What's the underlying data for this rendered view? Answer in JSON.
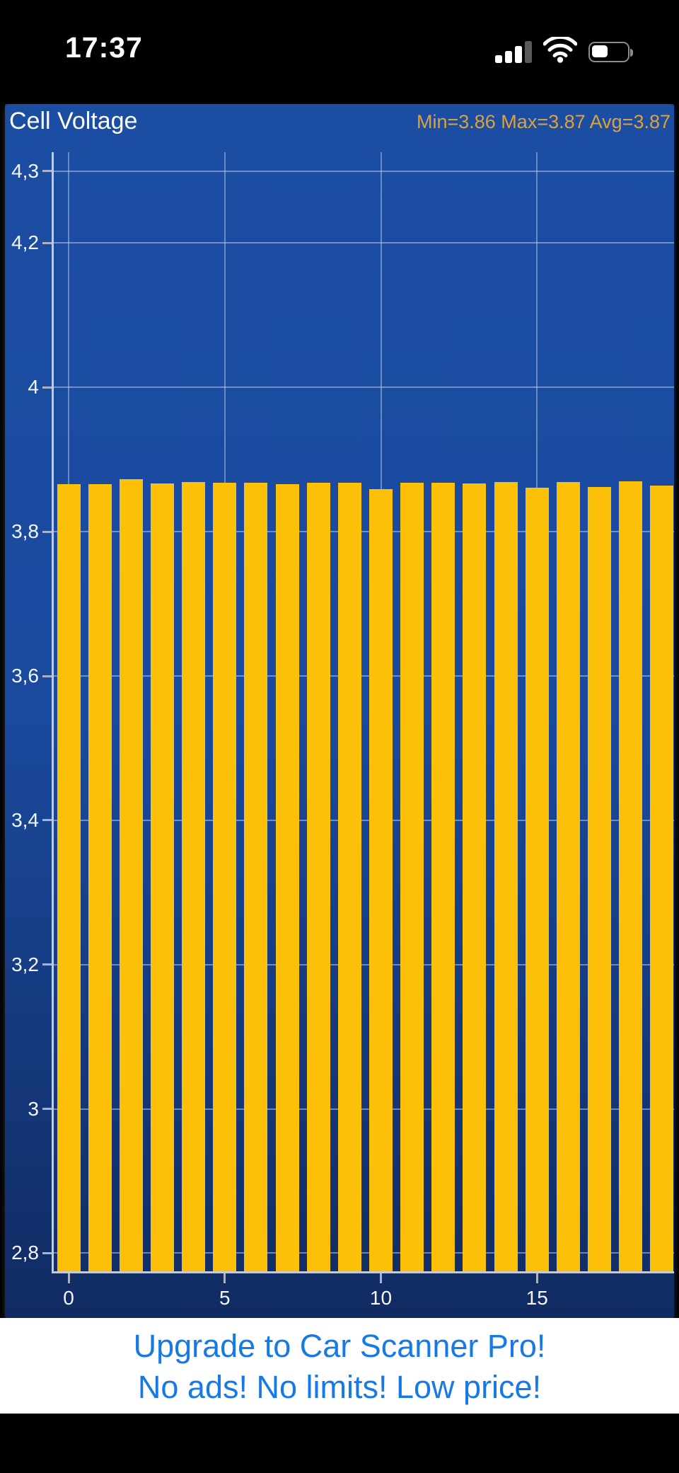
{
  "status_bar": {
    "time": "17:37",
    "icons": {
      "signal": "cellular-signal-3-of-4",
      "wifi": "wifi-full",
      "battery": "battery-about-half"
    }
  },
  "chart": {
    "title": "Cell Voltage",
    "stats_text": "Min=3.86 Max=3.87 Avg=3.87",
    "stats": {
      "min": "3.86",
      "max": "3.87",
      "avg": "3.87"
    }
  },
  "chart_data": {
    "type": "bar",
    "title": "Cell Voltage",
    "xlabel": "",
    "ylabel": "",
    "x": [
      0,
      1,
      2,
      3,
      4,
      5,
      6,
      7,
      8,
      9,
      10,
      11,
      12,
      13,
      14,
      15,
      16,
      17,
      18,
      19
    ],
    "values": [
      3.866,
      3.866,
      3.873,
      3.867,
      3.869,
      3.868,
      3.868,
      3.866,
      3.868,
      3.868,
      3.859,
      3.868,
      3.868,
      3.867,
      3.869,
      3.861,
      3.869,
      3.862,
      3.87,
      3.864
    ],
    "x_ticks": [
      {
        "value": 0,
        "label": "0"
      },
      {
        "value": 5,
        "label": "5"
      },
      {
        "value": 10,
        "label": "10"
      },
      {
        "value": 15,
        "label": "15"
      }
    ],
    "y_ticks": [
      {
        "value": 4.3,
        "label": "4,3"
      },
      {
        "value": 4.2,
        "label": "4,2"
      },
      {
        "value": 4.0,
        "label": "4"
      },
      {
        "value": 3.8,
        "label": "3,8"
      },
      {
        "value": 3.6,
        "label": "3,6"
      },
      {
        "value": 3.4,
        "label": "3,4"
      },
      {
        "value": 3.2,
        "label": "3,2"
      },
      {
        "value": 3.0,
        "label": "3"
      },
      {
        "value": 2.8,
        "label": "2,8"
      }
    ],
    "ylim": [
      2.774,
      4.326
    ],
    "grid": true,
    "legend": false,
    "stats": {
      "min": 3.86,
      "max": 3.87,
      "avg": 3.87
    },
    "colors": {
      "bar": "#FCC008",
      "background_top": "#1B4DA3",
      "background_bottom": "#112B62",
      "gridline": "#BFC9DD",
      "axis": "#C3CAD8",
      "tick_label": "#FFFFFF",
      "title": "#FFFFFF",
      "stats_text": "#DCA23C"
    }
  },
  "upsell": {
    "line1": "Upgrade to Car Scanner Pro!",
    "line2": "No ads! No limits! Low price!",
    "link_color": "#1779E5"
  }
}
